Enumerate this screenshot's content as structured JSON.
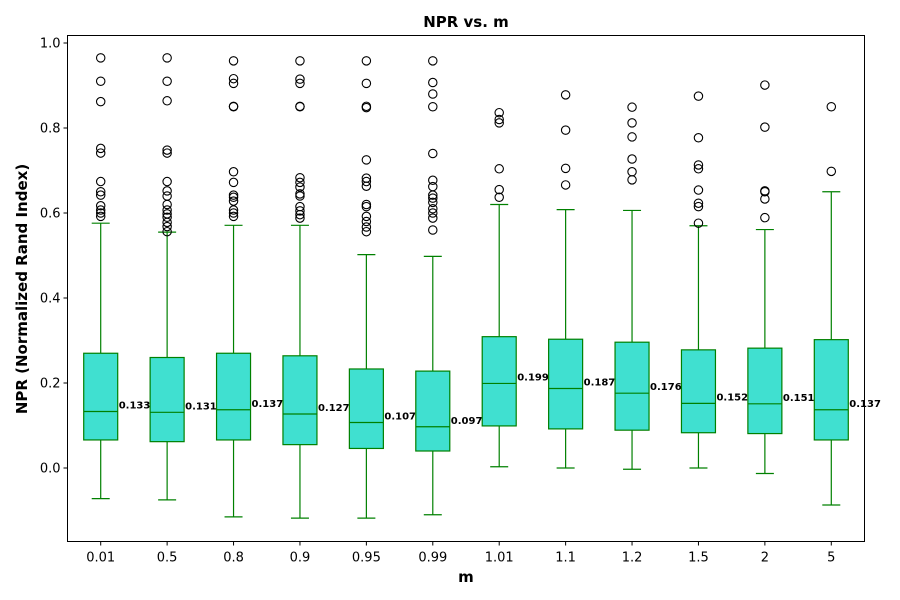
{
  "chart_data": {
    "type": "box",
    "title": "NPR vs. m",
    "xlabel": "m",
    "ylabel": "NPR (Normalized Rand Index)",
    "ylim": [
      -0.17,
      1.02
    ],
    "yticks": [
      "0.0",
      "0.2",
      "0.4",
      "0.6",
      "0.8",
      "1.0"
    ],
    "grid": false,
    "colors": {
      "box_fill": "#40e0d0",
      "box_edge": "#008000",
      "flier_edge": "#000000"
    },
    "categories": [
      "0.01",
      "0.5",
      "0.8",
      "0.9",
      "0.95",
      "0.99",
      "1.01",
      "1.1",
      "1.2",
      "1.5",
      "2",
      "5"
    ],
    "boxes": [
      {
        "whisker_low": -0.072,
        "q1": 0.066,
        "median": 0.133,
        "q3": 0.27,
        "whisker_high": 0.576,
        "median_label": "0.133",
        "outliers": [
          0.592,
          0.6,
          0.607,
          0.617,
          0.642,
          0.65,
          0.674,
          0.741,
          0.752,
          0.862,
          0.91,
          0.965
        ]
      },
      {
        "whisker_low": -0.075,
        "q1": 0.062,
        "median": 0.131,
        "q3": 0.26,
        "whisker_high": 0.555,
        "median_label": "0.131",
        "outliers": [
          0.556,
          0.568,
          0.578,
          0.59,
          0.598,
          0.607,
          0.62,
          0.64,
          0.652,
          0.674,
          0.741,
          0.748,
          0.864,
          0.91,
          0.965
        ]
      },
      {
        "whisker_low": -0.115,
        "q1": 0.066,
        "median": 0.137,
        "q3": 0.27,
        "whisker_high": 0.571,
        "median_label": "0.137",
        "outliers": [
          0.592,
          0.6,
          0.607,
          0.628,
          0.637,
          0.642,
          0.672,
          0.697,
          0.85,
          0.851,
          0.905,
          0.916,
          0.958
        ]
      },
      {
        "whisker_low": -0.118,
        "q1": 0.055,
        "median": 0.127,
        "q3": 0.264,
        "whisker_high": 0.571,
        "median_label": "0.127",
        "outliers": [
          0.588,
          0.596,
          0.605,
          0.615,
          0.64,
          0.645,
          0.661,
          0.672,
          0.683,
          0.85,
          0.851,
          0.905,
          0.915,
          0.958
        ]
      },
      {
        "whisker_low": -0.118,
        "q1": 0.046,
        "median": 0.107,
        "q3": 0.233,
        "whisker_high": 0.502,
        "median_label": "0.107",
        "outliers": [
          0.556,
          0.567,
          0.58,
          0.592,
          0.615,
          0.62,
          0.663,
          0.674,
          0.682,
          0.725,
          0.848,
          0.851,
          0.905,
          0.958
        ]
      },
      {
        "whisker_low": -0.11,
        "q1": 0.04,
        "median": 0.097,
        "q3": 0.228,
        "whisker_high": 0.498,
        "median_label": "0.097",
        "outliers": [
          0.56,
          0.588,
          0.6,
          0.61,
          0.625,
          0.635,
          0.642,
          0.662,
          0.677,
          0.74,
          0.85,
          0.88,
          0.907,
          0.958
        ]
      },
      {
        "whisker_low": 0.003,
        "q1": 0.099,
        "median": 0.199,
        "q3": 0.309,
        "whisker_high": 0.62,
        "median_label": "0.199",
        "outliers": [
          0.637,
          0.655,
          0.704,
          0.812,
          0.82,
          0.836
        ]
      },
      {
        "whisker_low": 0.0,
        "q1": 0.092,
        "median": 0.187,
        "q3": 0.303,
        "whisker_high": 0.608,
        "median_label": "0.187",
        "outliers": [
          0.666,
          0.705,
          0.795,
          0.878
        ]
      },
      {
        "whisker_low": -0.003,
        "q1": 0.089,
        "median": 0.176,
        "q3": 0.296,
        "whisker_high": 0.606,
        "median_label": "0.176",
        "outliers": [
          0.678,
          0.697,
          0.727,
          0.779,
          0.812,
          0.849
        ]
      },
      {
        "whisker_low": 0.0,
        "q1": 0.083,
        "median": 0.152,
        "q3": 0.278,
        "whisker_high": 0.57,
        "median_label": "0.152",
        "outliers": [
          0.576,
          0.615,
          0.623,
          0.654,
          0.704,
          0.713,
          0.777,
          0.875
        ]
      },
      {
        "whisker_low": -0.013,
        "q1": 0.081,
        "median": 0.151,
        "q3": 0.282,
        "whisker_high": 0.561,
        "median_label": "0.151",
        "outliers": [
          0.589,
          0.633,
          0.65,
          0.652,
          0.802,
          0.901
        ]
      },
      {
        "whisker_low": -0.087,
        "q1": 0.066,
        "median": 0.137,
        "q3": 0.302,
        "whisker_high": 0.65,
        "median_label": "0.137",
        "outliers": [
          0.698,
          0.85
        ]
      }
    ]
  }
}
